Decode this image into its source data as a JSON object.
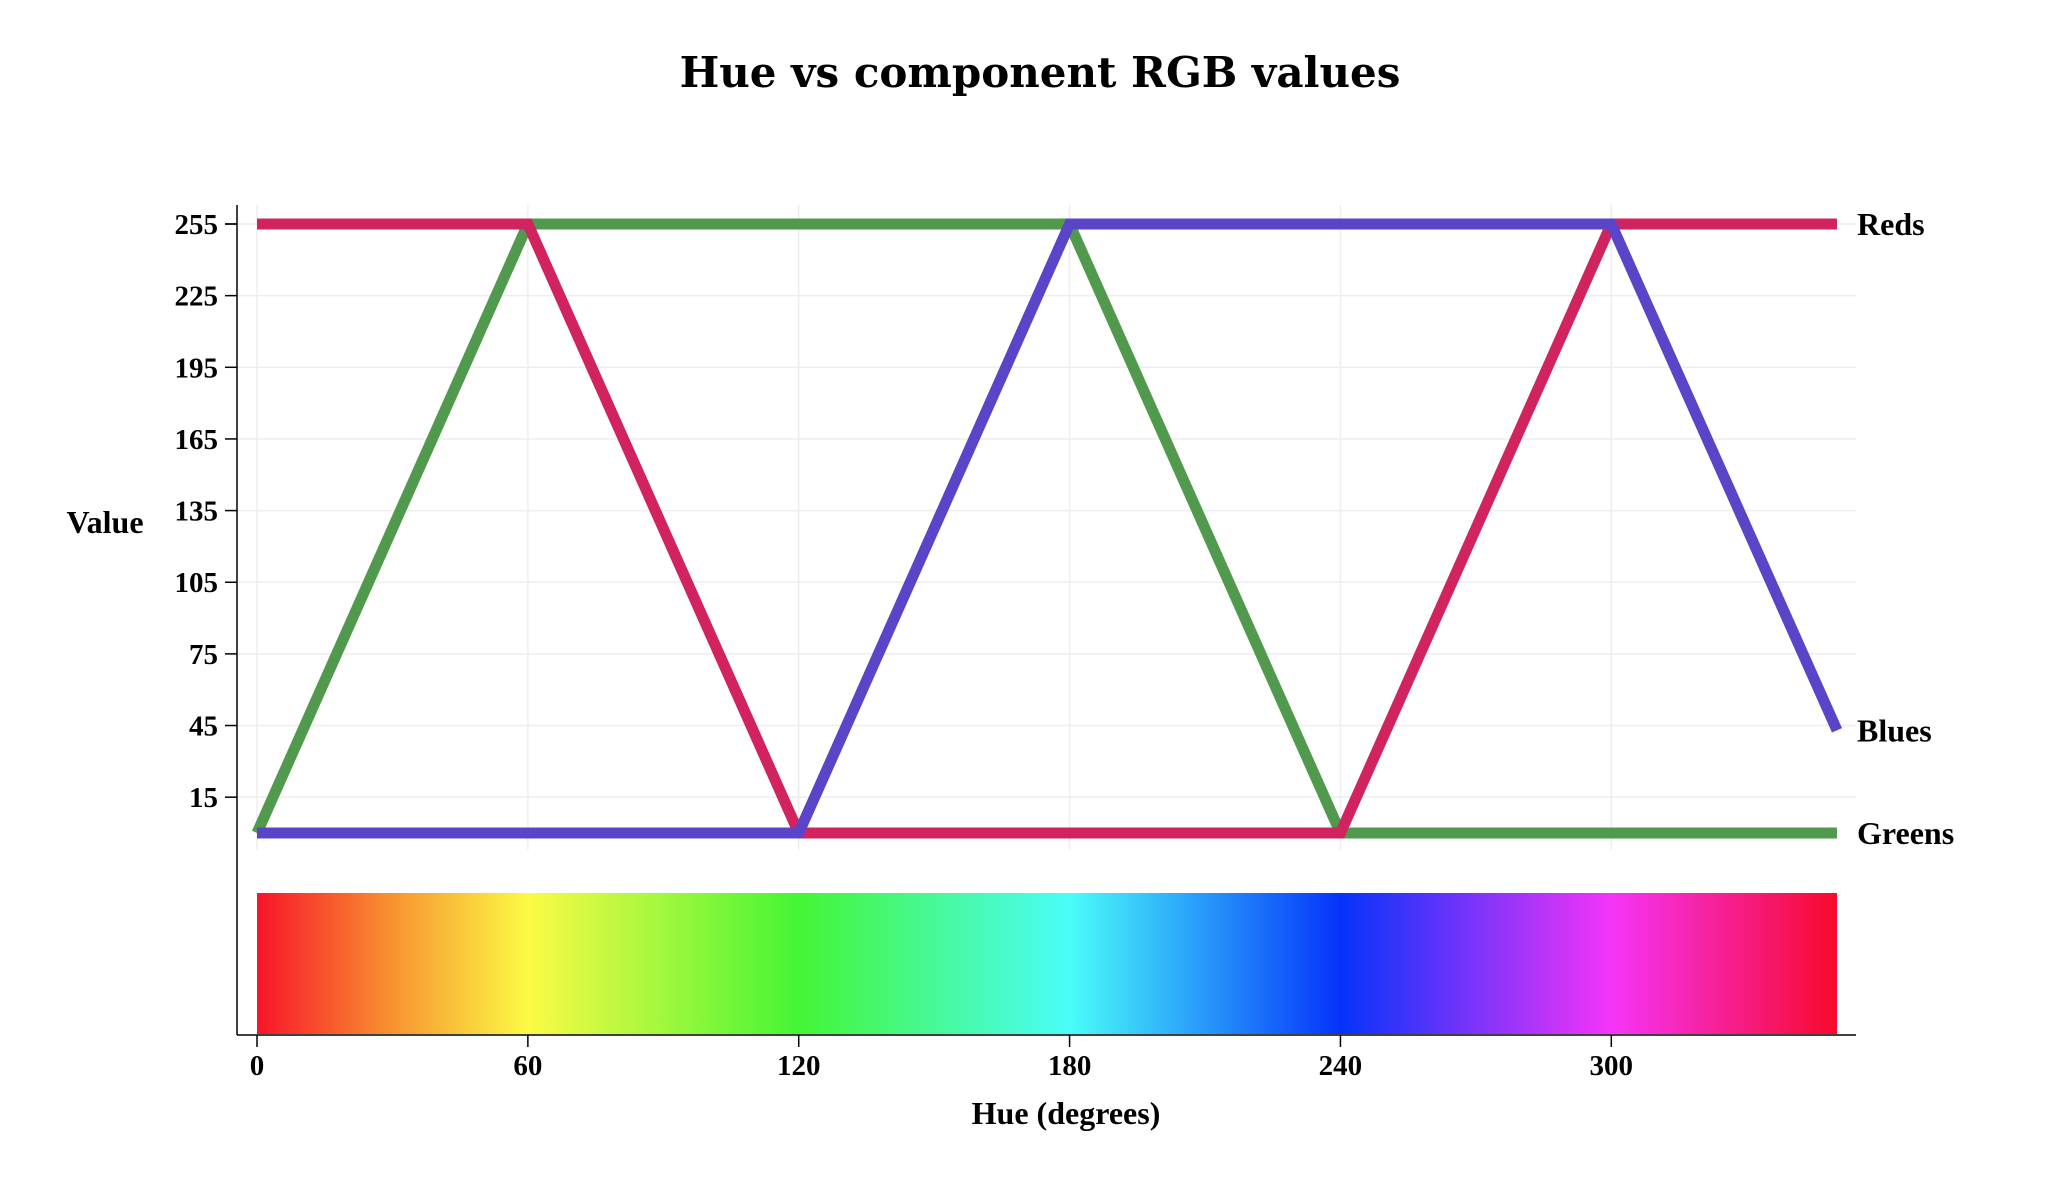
{
  "chart_data": {
    "type": "line",
    "title": "Hue vs component RGB values",
    "xlabel": "Hue (degrees)",
    "ylabel": "Value",
    "xlim": [
      0,
      350
    ],
    "ylim": [
      -15,
      262
    ],
    "x_ticks": [
      0,
      60,
      120,
      180,
      240,
      300
    ],
    "y_ticks": [
      15,
      45,
      75,
      105,
      135,
      165,
      195,
      225,
      255
    ],
    "grid": true,
    "series": [
      {
        "name": "Reds",
        "color": "#d0235f",
        "x": [
          0,
          60,
          120,
          180,
          240,
          300,
          350
        ],
        "y": [
          255,
          255,
          0,
          0,
          0,
          255,
          255
        ]
      },
      {
        "name": "Greens",
        "color": "#519a4d",
        "x": [
          0,
          60,
          120,
          180,
          240,
          300,
          350
        ],
        "y": [
          0,
          255,
          255,
          255,
          0,
          0,
          0
        ]
      },
      {
        "name": "Blues",
        "color": "#5a44c8",
        "x": [
          0,
          60,
          120,
          180,
          240,
          300,
          350
        ],
        "y": [
          0,
          0,
          0,
          255,
          255,
          255,
          43
        ]
      }
    ],
    "hue_bar": {
      "x_range": [
        0,
        350
      ],
      "stops": [
        {
          "hue": 0,
          "color": "#f8142a"
        },
        {
          "hue": 30,
          "color": "#f79330"
        },
        {
          "hue": 60,
          "color": "#fcfa45"
        },
        {
          "hue": 120,
          "color": "#44f535"
        },
        {
          "hue": 180,
          "color": "#4afdf9"
        },
        {
          "hue": 240,
          "color": "#0533fb"
        },
        {
          "hue": 300,
          "color": "#f534f8"
        },
        {
          "hue": 350,
          "color": "#f70a2c"
        }
      ]
    }
  }
}
